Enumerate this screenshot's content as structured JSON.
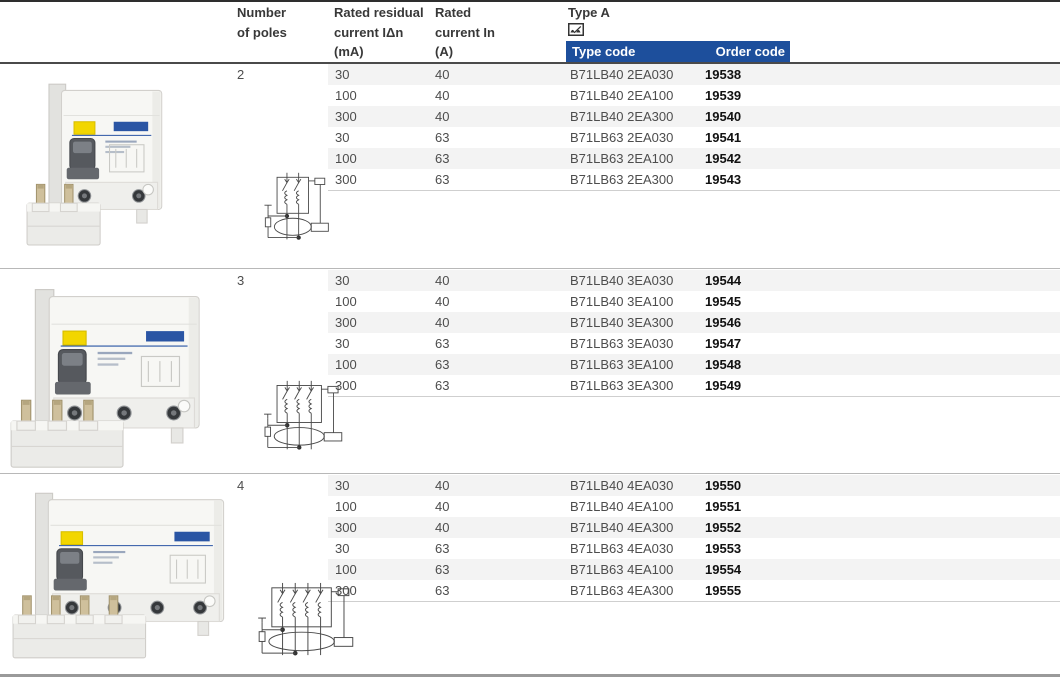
{
  "table": {
    "headers": {
      "poles": "Number\nof poles",
      "residual": "Rated residual\ncurrent IΔn\n(mA)",
      "rated": "Rated\ncurrent In\n(A)",
      "type_a": "Type A",
      "type_code": "Type code",
      "order_code": "Order code"
    },
    "sections": [
      {
        "poles": "2",
        "rows": [
          {
            "residual_ma": "30",
            "rated_a": "40",
            "type_code": "B71LB40 2EA030",
            "order_code": "19538"
          },
          {
            "residual_ma": "100",
            "rated_a": "40",
            "type_code": "B71LB40 2EA100",
            "order_code": "19539"
          },
          {
            "residual_ma": "300",
            "rated_a": "40",
            "type_code": "B71LB40 2EA300",
            "order_code": "19540"
          },
          {
            "residual_ma": "30",
            "rated_a": "63",
            "type_code": "B71LB63 2EA030",
            "order_code": "19541"
          },
          {
            "residual_ma": "100",
            "rated_a": "63",
            "type_code": "B71LB63 2EA100",
            "order_code": "19542"
          },
          {
            "residual_ma": "300",
            "rated_a": "63",
            "type_code": "B71LB63 2EA300",
            "order_code": "19543"
          }
        ]
      },
      {
        "poles": "3",
        "rows": [
          {
            "residual_ma": "30",
            "rated_a": "40",
            "type_code": "B71LB40 3EA030",
            "order_code": "19544"
          },
          {
            "residual_ma": "100",
            "rated_a": "40",
            "type_code": "B71LB40 3EA100",
            "order_code": "19545"
          },
          {
            "residual_ma": "300",
            "rated_a": "40",
            "type_code": "B71LB40 3EA300",
            "order_code": "19546"
          },
          {
            "residual_ma": "30",
            "rated_a": "63",
            "type_code": "B71LB63 3EA030",
            "order_code": "19547"
          },
          {
            "residual_ma": "100",
            "rated_a": "63",
            "type_code": "B71LB63 3EA100",
            "order_code": "19548"
          },
          {
            "residual_ma": "300",
            "rated_a": "63",
            "type_code": "B71LB63 3EA300",
            "order_code": "19549"
          }
        ]
      },
      {
        "poles": "4",
        "rows": [
          {
            "residual_ma": "30",
            "rated_a": "40",
            "type_code": "B71LB40 4EA030",
            "order_code": "19550"
          },
          {
            "residual_ma": "100",
            "rated_a": "40",
            "type_code": "B71LB40 4EA100",
            "order_code": "19551"
          },
          {
            "residual_ma": "300",
            "rated_a": "40",
            "type_code": "B71LB40 4EA300",
            "order_code": "19552"
          },
          {
            "residual_ma": "30",
            "rated_a": "63",
            "type_code": "B71LB63 4EA030",
            "order_code": "19553"
          },
          {
            "residual_ma": "100",
            "rated_a": "63",
            "type_code": "B71LB63 4EA100",
            "order_code": "19554"
          },
          {
            "residual_ma": "300",
            "rated_a": "63",
            "type_code": "B71LB63 4EA300",
            "order_code": "19555"
          }
        ]
      }
    ]
  },
  "icons": {
    "type_a": "type-a-waveform-icon"
  },
  "colors": {
    "header_bar_blue": "#1d4f9c",
    "row_stripe": "#f3f3f3",
    "label_yellow": "#f2d600",
    "brand_blue": "#2a55a4"
  }
}
